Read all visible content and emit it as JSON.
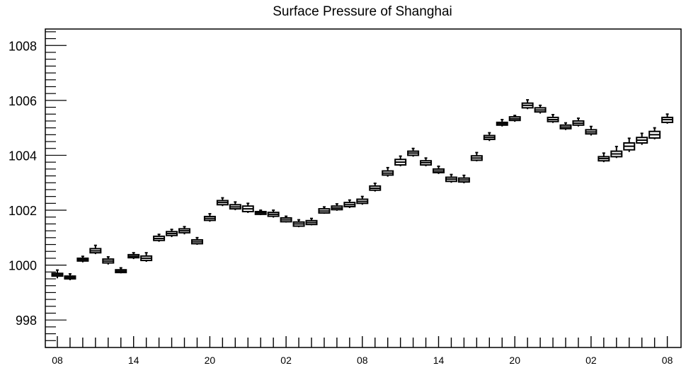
{
  "chart_data": {
    "type": "box",
    "title": "Surface Pressure of Shanghai",
    "xlabel": "",
    "ylabel": "",
    "ylim": [
      997,
      1008.6
    ],
    "y_ticks": [
      998,
      1000,
      1002,
      1004,
      1006,
      1008
    ],
    "x_tick_labels": [
      "08",
      "14",
      "20",
      "02",
      "08",
      "14",
      "20",
      "02",
      "08"
    ],
    "x_tick_hours": [
      0,
      6,
      12,
      18,
      24,
      30,
      36,
      42,
      48
    ],
    "grid": false,
    "series": [
      {
        "hours": [
          0,
          1,
          2,
          3,
          4,
          5,
          6,
          7,
          8,
          9,
          10,
          11,
          12,
          13,
          14,
          15,
          16,
          17,
          18,
          19,
          20,
          21,
          22,
          23,
          24,
          25,
          26,
          27,
          28,
          29,
          30,
          31,
          32,
          33,
          34,
          35,
          36,
          37,
          38,
          39,
          40,
          41,
          42,
          43,
          44,
          45,
          46,
          47,
          48
        ],
        "median": [
          999.65,
          999.55,
          1000.2,
          1000.52,
          1000.15,
          999.78,
          1000.32,
          1000.25,
          1000.97,
          1001.15,
          1001.25,
          1000.85,
          1001.7,
          1002.28,
          1002.12,
          1002.05,
          1001.9,
          1001.85,
          1001.65,
          1001.5,
          1001.55,
          1001.97,
          1002.08,
          1002.2,
          1002.32,
          1002.8,
          1003.35,
          1003.75,
          1004.08,
          1003.73,
          1003.43,
          1003.13,
          1003.1,
          1003.9,
          1004.65,
          1005.15,
          1005.33,
          1005.82,
          1005.65,
          1005.3,
          1005.03,
          1005.17,
          1004.85,
          1003.88,
          1004.05,
          1004.33,
          1004.55,
          1004.75,
          1005.3
        ],
        "q1": [
          999.6,
          999.5,
          1000.15,
          1000.45,
          1000.08,
          999.73,
          1000.27,
          1000.17,
          1000.9,
          1001.08,
          1001.18,
          1000.78,
          1001.63,
          1002.2,
          1002.05,
          1001.95,
          1001.85,
          1001.78,
          1001.58,
          1001.42,
          1001.48,
          1001.9,
          1002.02,
          1002.13,
          1002.25,
          1002.73,
          1003.28,
          1003.65,
          1004.0,
          1003.65,
          1003.37,
          1003.05,
          1003.03,
          1003.82,
          1004.58,
          1005.1,
          1005.27,
          1005.73,
          1005.58,
          1005.23,
          1004.97,
          1005.1,
          1004.78,
          1003.8,
          1003.95,
          1004.2,
          1004.45,
          1004.63,
          1005.2
        ],
        "q3": [
          999.7,
          999.6,
          1000.25,
          1000.6,
          1000.22,
          999.83,
          1000.38,
          1000.33,
          1001.05,
          1001.22,
          1001.32,
          1000.92,
          1001.77,
          1002.35,
          1002.2,
          1002.15,
          1001.95,
          1001.92,
          1001.72,
          1001.57,
          1001.62,
          1002.05,
          1002.15,
          1002.28,
          1002.4,
          1002.88,
          1003.43,
          1003.85,
          1004.15,
          1003.8,
          1003.5,
          1003.2,
          1003.17,
          1003.98,
          1004.72,
          1005.2,
          1005.4,
          1005.9,
          1005.73,
          1005.38,
          1005.1,
          1005.25,
          1004.93,
          1003.95,
          1004.15,
          1004.45,
          1004.65,
          1004.87,
          1005.38
        ],
        "min": [
          999.52,
          999.45,
          1000.1,
          1000.4,
          1000.02,
          999.7,
          1000.22,
          1000.12,
          1000.85,
          1001.02,
          1001.12,
          1000.74,
          1001.58,
          1002.15,
          1002.0,
          1001.9,
          1001.82,
          1001.73,
          1001.55,
          1001.38,
          1001.45,
          1001.87,
          1001.98,
          1002.08,
          1002.2,
          1002.68,
          1003.22,
          1003.6,
          1003.95,
          1003.6,
          1003.32,
          1003.0,
          1002.98,
          1003.78,
          1004.52,
          1005.05,
          1005.22,
          1005.68,
          1005.52,
          1005.18,
          1004.92,
          1005.05,
          1004.72,
          1003.75,
          1003.9,
          1004.12,
          1004.38,
          1004.58,
          1005.15
        ],
        "max": [
          999.82,
          999.68,
          1000.32,
          1000.72,
          1000.3,
          999.9,
          1000.45,
          1000.45,
          1001.12,
          1001.3,
          1001.4,
          1001.0,
          1001.87,
          1002.45,
          1002.3,
          1002.25,
          1002.0,
          1002.0,
          1001.78,
          1001.65,
          1001.7,
          1002.12,
          1002.23,
          1002.37,
          1002.5,
          1002.98,
          1003.55,
          1003.97,
          1004.25,
          1003.9,
          1003.6,
          1003.3,
          1003.27,
          1004.1,
          1004.82,
          1005.3,
          1005.45,
          1006.02,
          1005.82,
          1005.48,
          1005.18,
          1005.35,
          1005.05,
          1004.08,
          1004.32,
          1004.62,
          1004.8,
          1005.0,
          1005.5
        ]
      }
    ]
  }
}
